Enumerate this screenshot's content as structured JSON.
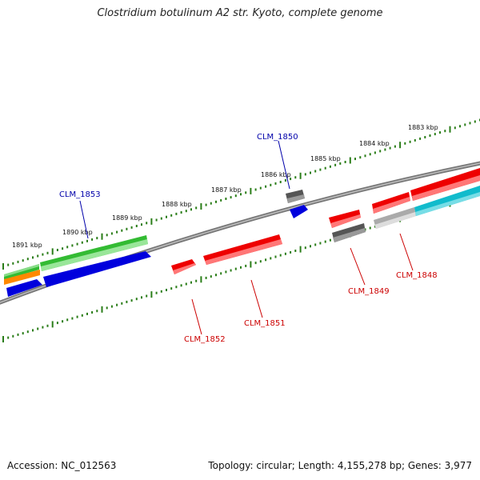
{
  "title": "Clostridium botulinum A2 str. Kyoto, complete genome",
  "footer": {
    "accession": "Accession: NC_012563",
    "summary": "Topology: circular; Length: 4,155,278 bp; Genes: 3,977"
  },
  "scale_labels": [
    "1891 kbp",
    "1890 kbp",
    "1889 kbp",
    "1888 kbp",
    "1887 kbp",
    "1886 kbp",
    "1885 kbp",
    "1884 kbp",
    "1883 kbp"
  ],
  "gene_labels": {
    "clm_1853": "CLM_1853",
    "clm_1850": "CLM_1850",
    "clm_1852": "CLM_1852",
    "clm_1851": "CLM_1851",
    "clm_1849": "CLM_1849",
    "clm_1848": "CLM_1848"
  },
  "colors": {
    "forward_label": "#0000aa",
    "reverse_label": "#cc0000",
    "tick": "#2a7d18",
    "backbone": "#777777",
    "cds_red": "#ee0000",
    "cds_blue": "#0000dd",
    "cds_green": "#33bb33",
    "cds_grey": "#555555",
    "cds_cyan": "#11bbcc",
    "cds_orange": "#ff8800",
    "cds_lightgrey": "#aaaaaa"
  }
}
